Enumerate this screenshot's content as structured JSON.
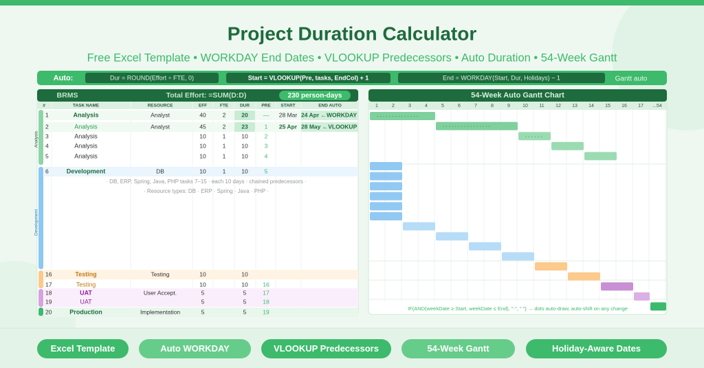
{
  "header": {
    "title": "Project Duration Calculator",
    "subtitle": "Free Excel Template • WORKDAY End Dates • VLOOKUP Predecessors • Auto Duration • 54-Week Gantt"
  },
  "formula_bar": {
    "label": "Auto:",
    "formulas": [
      "Dur = ROUND(Effort ÷ FTE, 0)",
      "Start = VLOOKUP(Pre, tasks, EndCol) + 1",
      "End = WORKDAY(Start, Dur, Holidays) − 1"
    ],
    "right": "Gantt auto"
  },
  "table": {
    "project": "BRMS",
    "effort_label": "Total Effort: =SUM(D:D)",
    "effort_badge": "230 person-days",
    "columns": [
      "#",
      "TASK NAME",
      "RESOURCE",
      "EFF",
      "FTE",
      "DUR",
      "PRE",
      "START",
      "END AUTO"
    ],
    "groups": [
      "Analysis",
      "Development"
    ],
    "rows": [
      {
        "num": 1,
        "task": "Analysis",
        "resource": "Analyst",
        "eff": 40,
        "fte": 2,
        "dur": 20,
        "pre": "—",
        "start": "28 Mar",
        "end": "24 Apr ←WORKDAY"
      },
      {
        "num": 2,
        "task": "Analysis",
        "resource": "Analyst",
        "eff": 45,
        "fte": 2,
        "dur": 23,
        "pre": 1,
        "start": "25 Apr",
        "end": "28 May ←VLOOKUP"
      },
      {
        "num": 3,
        "task": "Analysis",
        "eff": 10,
        "fte": 1,
        "dur": 10,
        "pre": 2
      },
      {
        "num": 4,
        "task": "Analysis",
        "eff": 10,
        "fte": 1,
        "dur": 10,
        "pre": 3
      },
      {
        "num": 5,
        "task": "Analysis",
        "eff": 10,
        "fte": 1,
        "dur": 10,
        "pre": 4
      },
      {
        "num": 6,
        "task": "Development",
        "resource": "DB",
        "eff": 10,
        "fte": 1,
        "dur": 10,
        "pre": 5
      },
      {
        "num": 16,
        "task": "Testing",
        "resource": "Testing",
        "eff": 10,
        "dur": 10
      },
      {
        "num": 17,
        "task": "Testing",
        "eff": 10,
        "dur": 10,
        "pre": 16
      },
      {
        "num": 18,
        "task": "UAT",
        "resource": "User Accept.",
        "eff": 5,
        "dur": 5,
        "pre": 17
      },
      {
        "num": 19,
        "task": "UAT",
        "eff": 5,
        "dur": 5,
        "pre": 18
      },
      {
        "num": 20,
        "task": "Production",
        "resource": "Implementation",
        "eff": 5,
        "dur": 5,
        "pre": 19
      }
    ],
    "notes": [
      "· DB, ERP, Spring, Java, PHP tasks 7–15 · each 10 days · chained predecessors ·",
      "· Resource types: DB · ERP · Spring · Java · PHP ·"
    ]
  },
  "gantt": {
    "title": "54-Week Auto Gantt Chart",
    "weeks": [
      1,
      2,
      3,
      4,
      5,
      6,
      7,
      8,
      9,
      10,
      11,
      12,
      13,
      14,
      15,
      16,
      17,
      "...54"
    ],
    "bars": [
      {
        "start": 1,
        "weeks": 4,
        "dots": ". . . . . . . . . . . . . ."
      },
      {
        "start": 5,
        "weeks": 5,
        "dots": ". . . . . . . . . . . . . . . ."
      },
      {
        "start": 10,
        "weeks": 2,
        "dots": ". . . . . ."
      },
      {
        "start": 12,
        "weeks": 2
      },
      {
        "start": 14,
        "weeks": 2
      },
      {
        "start": 1,
        "weeks": 2
      },
      {
        "start": 1,
        "weeks": 2
      },
      {
        "start": 1,
        "weeks": 2
      },
      {
        "start": 1,
        "weeks": 2
      },
      {
        "start": 1,
        "weeks": 2
      },
      {
        "start": 1,
        "weeks": 2
      },
      {
        "start": 3,
        "weeks": 2
      },
      {
        "start": 5,
        "weeks": 2
      },
      {
        "start": 7,
        "weeks": 2
      },
      {
        "start": 9,
        "weeks": 2
      },
      {
        "start": 11,
        "weeks": 2
      },
      {
        "start": 13,
        "weeks": 2
      },
      {
        "start": 15,
        "weeks": 2
      },
      {
        "start": 17,
        "weeks": 1
      },
      {
        "start": 18,
        "weeks": 1
      }
    ],
    "footer": "IF(AND(weekDate ≥ Start, weekDate ≤ End), \"·\", \" \")  → dots auto-draw, auto-shift on any change"
  },
  "pills": [
    "Excel Template",
    "Auto WORKDAY",
    "VLOOKUP Predecessors",
    "54-Week Gantt",
    "Holiday-Aware Dates"
  ]
}
